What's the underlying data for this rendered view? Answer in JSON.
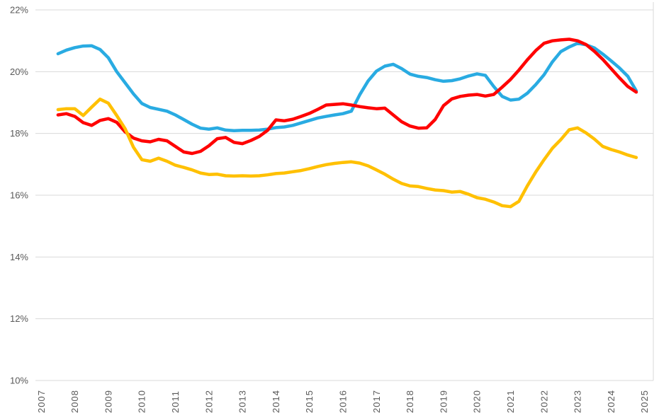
{
  "colors": {
    "background": "#FFFFFF",
    "gridline": "#D9D9D9",
    "plot_border": "#D9D9D9",
    "axis_text": "#595959"
  },
  "chart_data": {
    "type": "line",
    "title": "",
    "legend": "none",
    "grid": true,
    "x_start": 2007.5,
    "x_step": 0.25,
    "x_axis": {
      "tick_labels": [
        "2007",
        "2008",
        "2009",
        "2010",
        "2011",
        "2012",
        "2013",
        "2014",
        "2015",
        "2016",
        "2017",
        "2018",
        "2019",
        "2020",
        "2021",
        "2022",
        "2023",
        "2024",
        "2025"
      ],
      "first_year": 2007,
      "last_year": 2025,
      "label_rotation_deg": -90
    },
    "y_axis": {
      "min": 10,
      "max": 22,
      "tick_step": 2,
      "tick_labels": [
        "10%",
        "12%",
        "14%",
        "16%",
        "18%",
        "20%",
        "22%"
      ]
    },
    "series": [
      {
        "name": "blue-series",
        "color": "#29ABE2",
        "values": [
          20.58,
          20.7,
          20.78,
          20.83,
          20.84,
          20.72,
          20.45,
          20.0,
          19.64,
          19.28,
          18.97,
          18.84,
          18.78,
          18.72,
          18.6,
          18.45,
          18.3,
          18.17,
          18.14,
          18.18,
          18.11,
          18.09,
          18.1,
          18.1,
          18.11,
          18.14,
          18.19,
          18.21,
          18.26,
          18.34,
          18.42,
          18.5,
          18.55,
          18.6,
          18.64,
          18.72,
          19.25,
          19.7,
          20.02,
          20.18,
          20.24,
          20.1,
          19.92,
          19.85,
          19.81,
          19.74,
          19.69,
          19.71,
          19.77,
          19.86,
          19.93,
          19.88,
          19.52,
          19.2,
          19.08,
          19.11,
          19.3,
          19.58,
          19.9,
          20.32,
          20.65,
          20.8,
          20.92,
          20.87,
          20.77,
          20.57,
          20.35,
          20.12,
          19.85,
          19.38
        ]
      },
      {
        "name": "red-series",
        "color": "#FF0000",
        "values": [
          18.6,
          18.64,
          18.55,
          18.35,
          18.26,
          18.42,
          18.48,
          18.36,
          18.05,
          17.85,
          17.76,
          17.73,
          17.81,
          17.76,
          17.58,
          17.4,
          17.35,
          17.42,
          17.6,
          17.83,
          17.87,
          17.71,
          17.67,
          17.77,
          17.9,
          18.1,
          18.44,
          18.41,
          18.46,
          18.55,
          18.65,
          18.78,
          18.92,
          18.94,
          18.96,
          18.92,
          18.87,
          18.83,
          18.8,
          18.82,
          18.6,
          18.38,
          18.24,
          18.17,
          18.18,
          18.45,
          18.9,
          19.12,
          19.2,
          19.24,
          19.26,
          19.21,
          19.26,
          19.5,
          19.75,
          20.05,
          20.38,
          20.68,
          20.92,
          21.0,
          21.03,
          21.05,
          21.0,
          20.88,
          20.66,
          20.4,
          20.1,
          19.8,
          19.52,
          19.34
        ]
      },
      {
        "name": "yellow-series",
        "color": "#FFC000",
        "values": [
          18.77,
          18.8,
          18.8,
          18.58,
          18.85,
          19.11,
          18.98,
          18.58,
          18.15,
          17.55,
          17.15,
          17.1,
          17.2,
          17.1,
          16.97,
          16.9,
          16.82,
          16.72,
          16.67,
          16.68,
          16.63,
          16.62,
          16.63,
          16.62,
          16.63,
          16.66,
          16.7,
          16.72,
          16.76,
          16.8,
          16.86,
          16.93,
          16.99,
          17.03,
          17.06,
          17.08,
          17.04,
          16.95,
          16.82,
          16.68,
          16.52,
          16.38,
          16.3,
          16.28,
          16.22,
          16.17,
          16.15,
          16.1,
          16.12,
          16.03,
          15.92,
          15.87,
          15.78,
          15.66,
          15.63,
          15.8,
          16.3,
          16.75,
          17.15,
          17.52,
          17.8,
          18.12,
          18.18,
          18.02,
          17.82,
          17.58,
          17.48,
          17.4,
          17.3,
          17.22
        ]
      }
    ]
  }
}
